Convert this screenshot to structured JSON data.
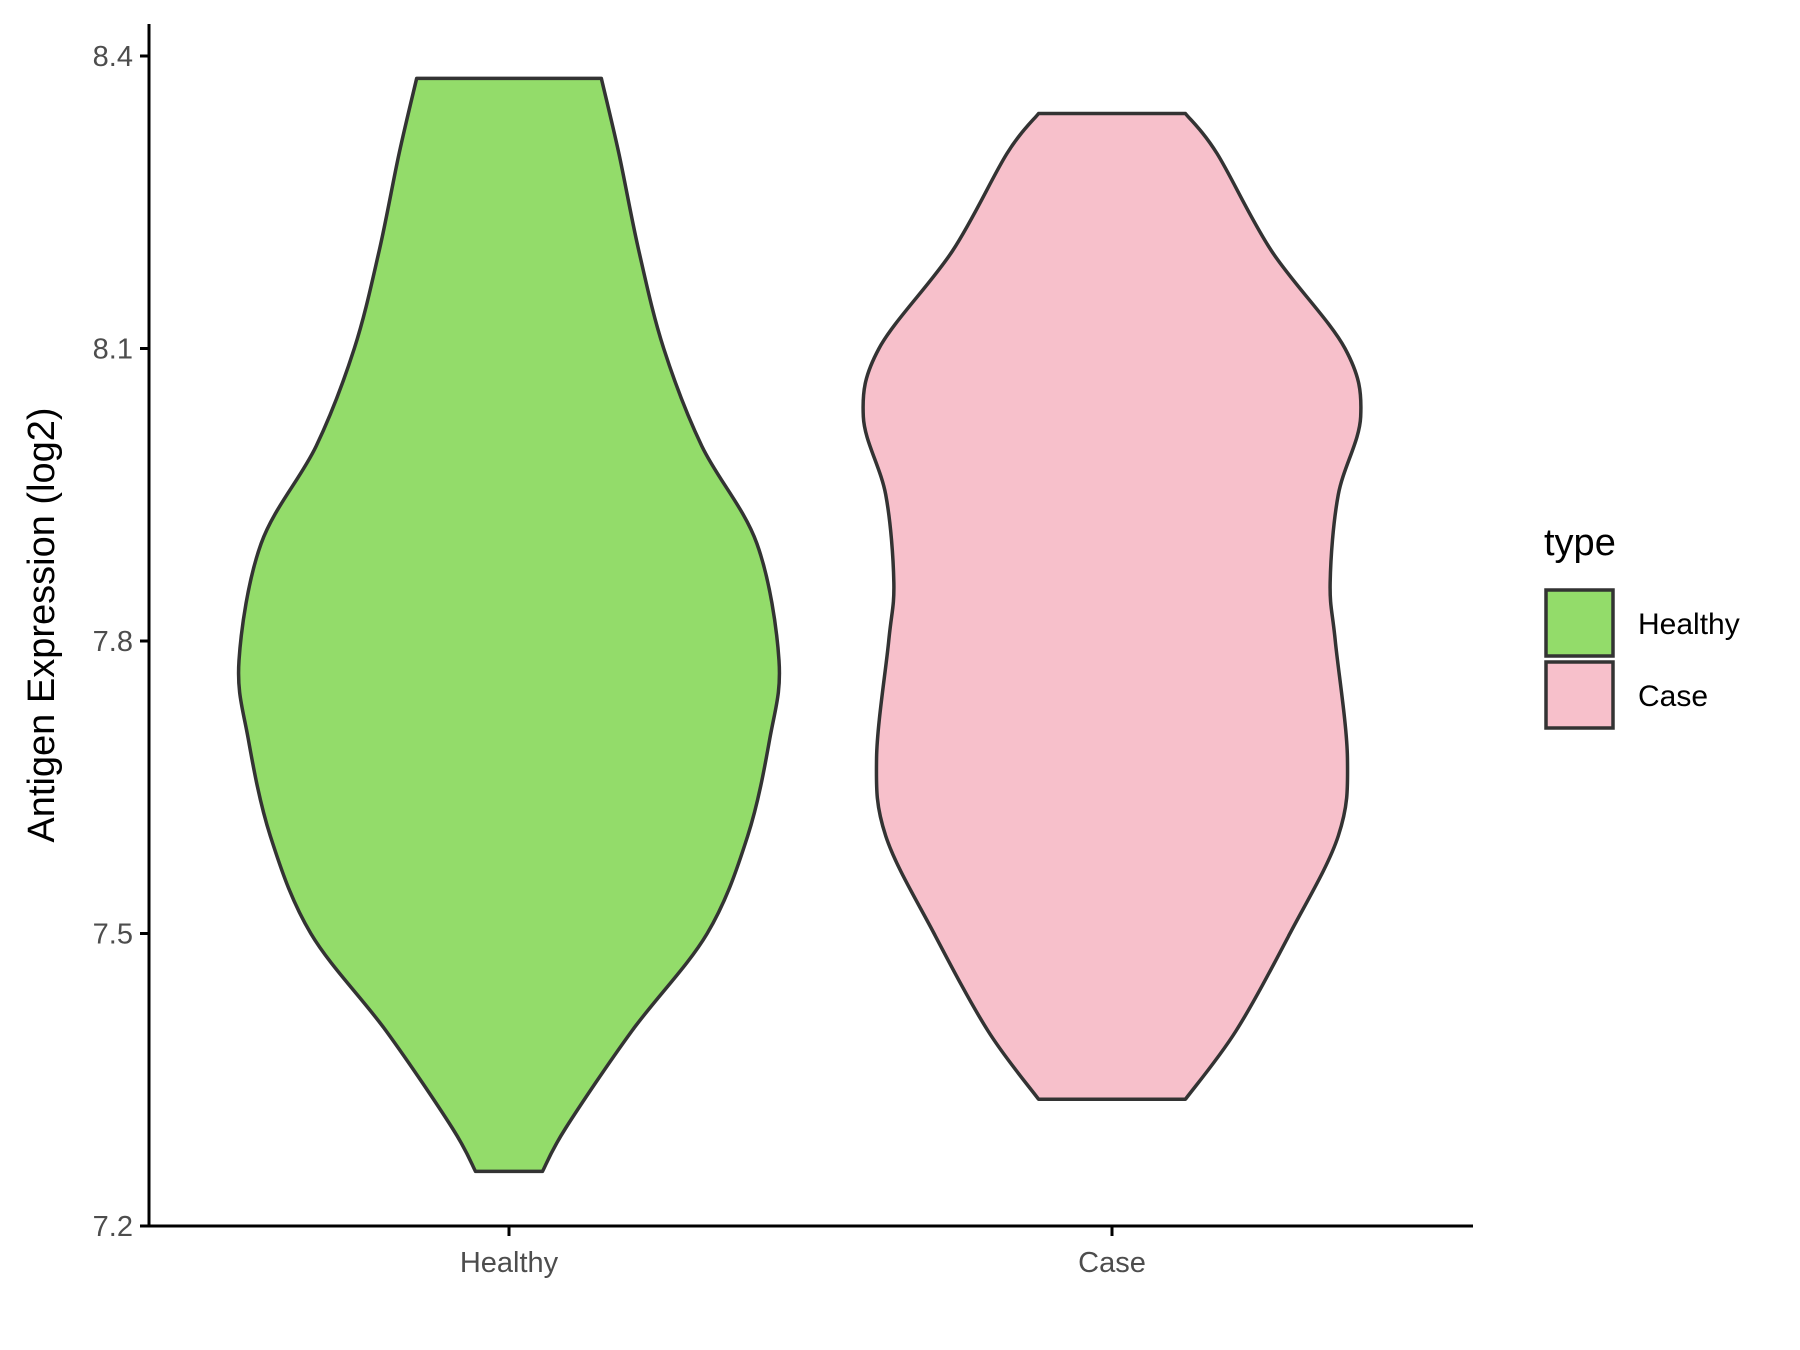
{
  "chart_data": {
    "type": "violin",
    "xlabel": "",
    "ylabel": "Antigen Expression (log2)",
    "ylim": [
      7.2,
      8.4
    ],
    "yticks": [
      "7.2",
      "7.5",
      "7.8",
      "8.1",
      "8.4"
    ],
    "categories": [
      "Healthy",
      "Case"
    ],
    "grid": false,
    "legend": {
      "title": "type",
      "position": "right",
      "entries": [
        {
          "label": "Healthy",
          "color": "#93dc6a"
        },
        {
          "label": "Case",
          "color": "#f7c0cb"
        }
      ]
    },
    "series": [
      {
        "category": "Healthy",
        "color": "#93dc6a",
        "min": 7.256,
        "max": 8.377,
        "density_profile": [
          {
            "y": 7.256,
            "width": 0.124
          },
          {
            "y": 7.3,
            "width": 0.209
          },
          {
            "y": 7.4,
            "width": 0.455
          },
          {
            "y": 7.5,
            "width": 0.734
          },
          {
            "y": 7.6,
            "width": 0.884
          },
          {
            "y": 7.7,
            "width": 0.966
          },
          {
            "y": 7.78,
            "width": 1.0
          },
          {
            "y": 7.9,
            "width": 0.918
          },
          {
            "y": 8.0,
            "width": 0.714
          },
          {
            "y": 8.1,
            "width": 0.573
          },
          {
            "y": 8.2,
            "width": 0.481
          },
          {
            "y": 8.3,
            "width": 0.407
          },
          {
            "y": 8.377,
            "width": 0.342
          }
        ]
      },
      {
        "category": "Case",
        "color": "#f7c0cb",
        "min": 7.33,
        "max": 8.341,
        "density_profile": [
          {
            "y": 7.33,
            "width": 0.272
          },
          {
            "y": 7.4,
            "width": 0.459
          },
          {
            "y": 7.5,
            "width": 0.659
          },
          {
            "y": 7.6,
            "width": 0.838
          },
          {
            "y": 7.68,
            "width": 0.872
          },
          {
            "y": 7.8,
            "width": 0.827
          },
          {
            "y": 7.86,
            "width": 0.808
          },
          {
            "y": 7.95,
            "width": 0.838
          },
          {
            "y": 8.03,
            "width": 0.921
          },
          {
            "y": 8.1,
            "width": 0.863
          },
          {
            "y": 8.2,
            "width": 0.591
          },
          {
            "y": 8.3,
            "width": 0.389
          },
          {
            "y": 8.341,
            "width": 0.272
          }
        ]
      }
    ]
  }
}
